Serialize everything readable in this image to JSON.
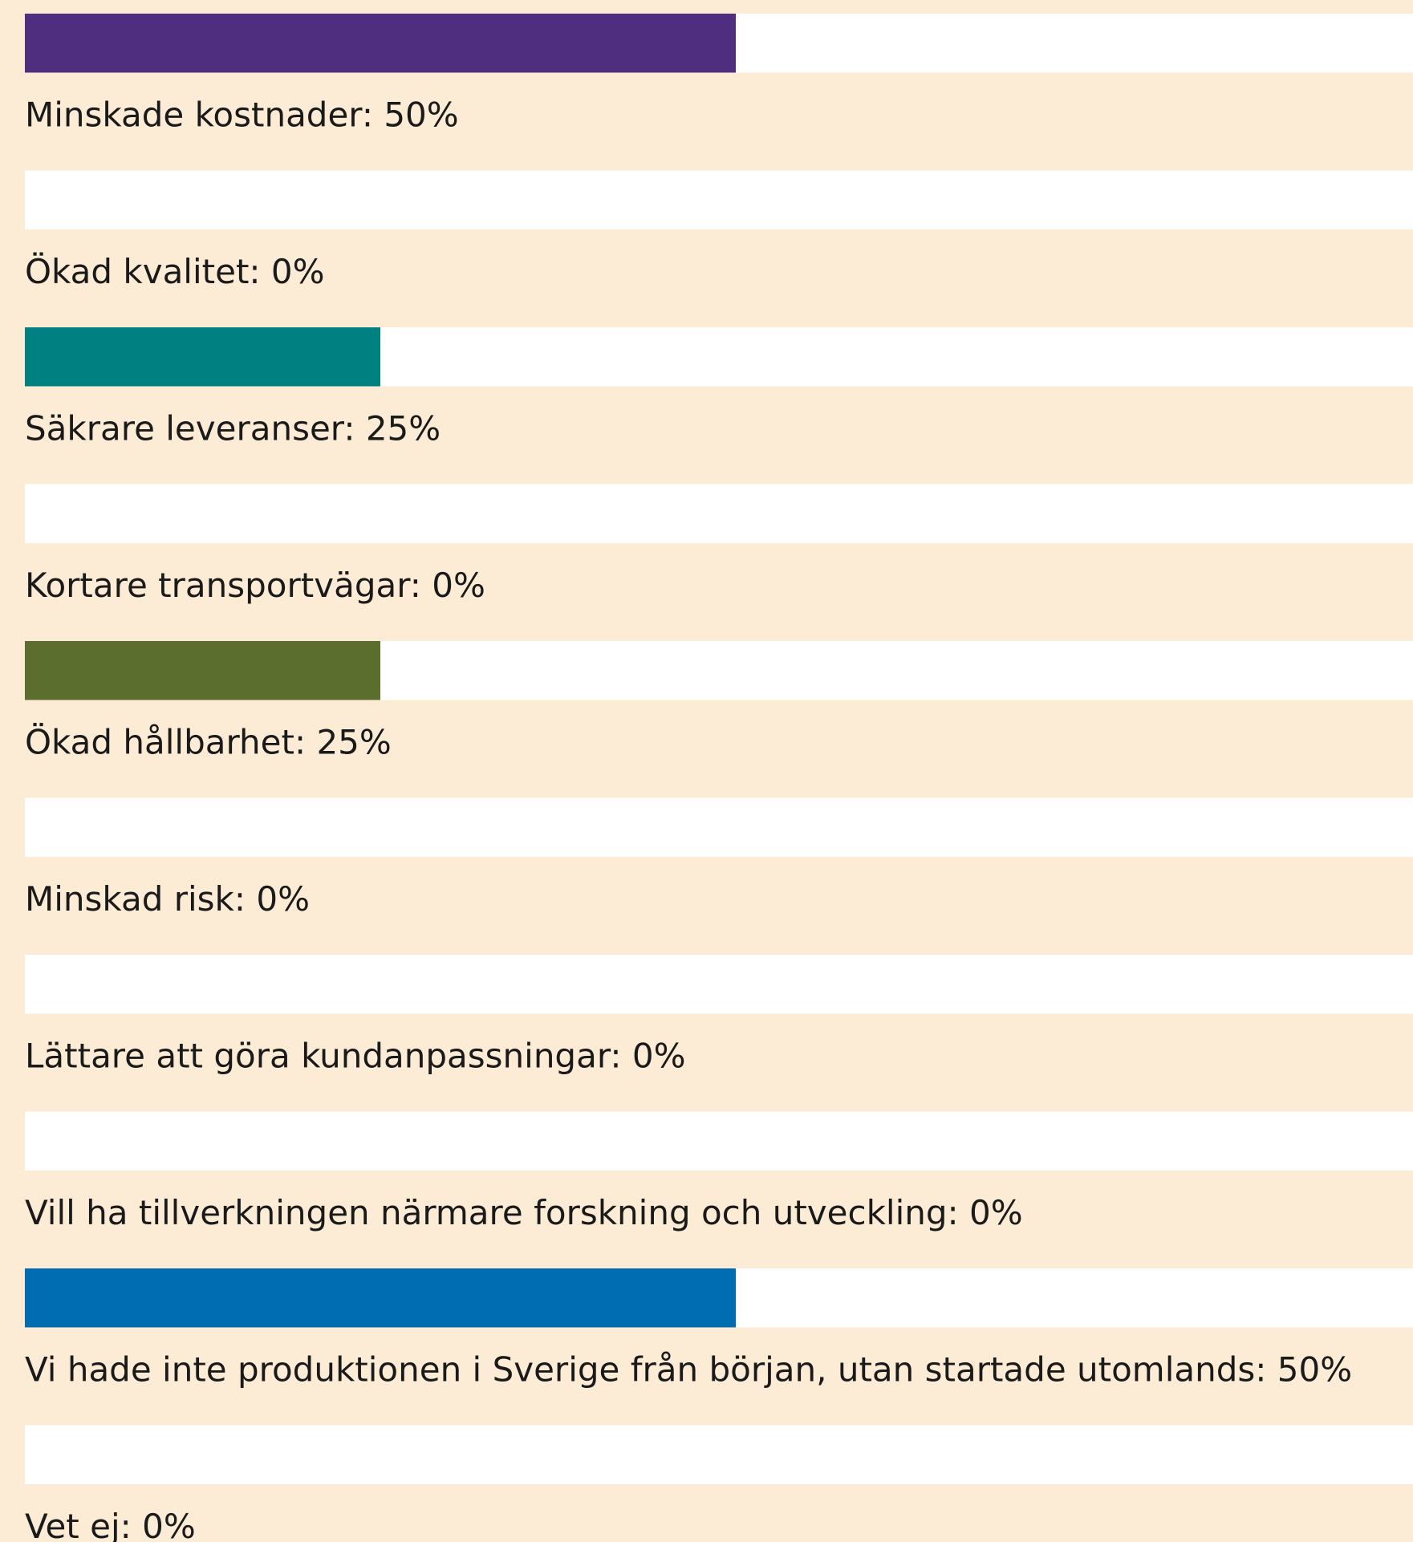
{
  "chart_data": {
    "type": "bar",
    "value_labels": [
      "Minskade kostnader: 50%",
      "Ökad kvalitet: 0%",
      "Säkrare leveranser: 25%",
      "Kortare transportvägar: 0%",
      "Ökad hållbarhet: 25%",
      "Minskad risk: 0%",
      "Lättare att göra kundanpassningar: 0%",
      "Vill ha tillverkningen närmare forskning och utveckling: 0%",
      "Vi hade inte produktionen i Sverige från början, utan startade utomlands: 50%",
      "Vet ej: 0%"
    ],
    "values": [
      50,
      0,
      25,
      0,
      25,
      0,
      0,
      0,
      50,
      0
    ],
    "colors": [
      "#4f2d7f",
      null,
      "#008080",
      null,
      "#5c6e2e",
      null,
      null,
      null,
      "#006db3",
      null
    ],
    "xlim": [
      0,
      100
    ]
  }
}
